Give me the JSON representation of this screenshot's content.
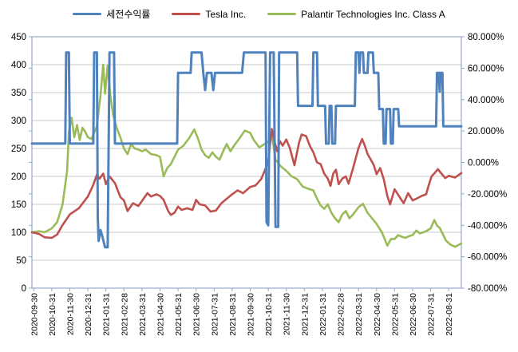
{
  "legend": {
    "items": [
      {
        "label": "세전수익률",
        "color": "#4F81BD"
      },
      {
        "label": "Tesla Inc.",
        "color": "#C0504D"
      },
      {
        "label": "Palantir Technologies Inc. Class A",
        "color": "#9BBB59"
      }
    ]
  },
  "colors": {
    "blue_series": "#4F81BD",
    "red_series": "#C0504D",
    "green_series": "#9BBB59",
    "gridline": "#C9C9C9",
    "plot_border": "#95A9C6",
    "axis_text": "#000000",
    "background": "#FFFFFF"
  },
  "chart_data": {
    "type": "line",
    "title": "",
    "grid": "horizontal",
    "legend_position": "top",
    "x_unit": "months since 2020-09-30 (t=k corresponds to k-th month-end label)",
    "x_axis": {
      "labels": [
        "2020-09-30",
        "2020-10-31",
        "2020-11-30",
        "2020-12-31",
        "2021-01-31",
        "2021-02-28",
        "2021-03-31",
        "2021-04-30",
        "2021-05-31",
        "2021-06-30",
        "2021-07-31",
        "2021-08-31",
        "2021-09-30",
        "2021-10-31",
        "2021-11-30",
        "2021-12-31",
        "2022-01-31",
        "2022-02-28",
        "2022-03-31",
        "2022-04-30",
        "2022-05-31",
        "2022-06-30",
        "2022-07-31",
        "2022-08-31"
      ],
      "label_rotation_deg": -90,
      "t_max": 23.7
    },
    "y_left": {
      "min": 0,
      "max": 450,
      "step": 50,
      "tick_labels": [
        "450",
        "400",
        "350",
        "300",
        "250",
        "200",
        "150",
        "100",
        "50",
        "0"
      ],
      "applies_to": "Tesla Inc. / Palantir indexed price (2020-09-30 = 100)"
    },
    "y_right": {
      "min": -80,
      "max": 80,
      "step": 20,
      "tick_labels": [
        "80.000%",
        "60.000%",
        "40.000%",
        "20.000%",
        "0.000%",
        "-20.000%",
        "-40.000%",
        "-60.000%",
        "-80.000%"
      ],
      "applies_to": "세전수익률 (pre-tax return %)"
    },
    "series": [
      {
        "name": "세전수익률",
        "color": "#4F81BD",
        "axis": "right",
        "unit": "percent",
        "width": 3,
        "points": [
          [
            -0.1,
            12
          ],
          [
            1.75,
            12
          ],
          [
            1.8,
            70
          ],
          [
            1.95,
            70
          ],
          [
            2.0,
            12
          ],
          [
            3.3,
            12
          ],
          [
            3.35,
            70
          ],
          [
            3.5,
            70
          ],
          [
            3.55,
            -35
          ],
          [
            3.6,
            -50
          ],
          [
            3.7,
            -43
          ],
          [
            3.8,
            -47
          ],
          [
            3.95,
            -54
          ],
          [
            4.1,
            -54
          ],
          [
            4.2,
            70
          ],
          [
            4.45,
            70
          ],
          [
            4.5,
            12
          ],
          [
            7.95,
            12
          ],
          [
            8.0,
            57
          ],
          [
            8.7,
            57
          ],
          [
            8.75,
            70
          ],
          [
            9.3,
            70
          ],
          [
            9.4,
            57
          ],
          [
            9.5,
            46
          ],
          [
            9.6,
            57
          ],
          [
            9.85,
            57
          ],
          [
            9.95,
            46
          ],
          [
            10.05,
            57
          ],
          [
            11.55,
            57
          ],
          [
            11.65,
            70
          ],
          [
            12.85,
            70
          ],
          [
            12.9,
            -38
          ],
          [
            13.0,
            -40
          ],
          [
            13.1,
            70
          ],
          [
            13.3,
            70
          ],
          [
            13.4,
            -41
          ],
          [
            13.55,
            -41
          ],
          [
            13.6,
            70
          ],
          [
            14.6,
            70
          ],
          [
            14.65,
            36
          ],
          [
            15.45,
            36
          ],
          [
            15.5,
            70
          ],
          [
            15.7,
            70
          ],
          [
            15.75,
            36
          ],
          [
            16.15,
            36
          ],
          [
            16.2,
            12
          ],
          [
            16.35,
            12
          ],
          [
            16.4,
            36
          ],
          [
            16.5,
            36
          ],
          [
            16.55,
            12
          ],
          [
            16.7,
            12
          ],
          [
            16.75,
            36
          ],
          [
            17.8,
            36
          ],
          [
            17.85,
            70
          ],
          [
            18.0,
            70
          ],
          [
            18.05,
            57
          ],
          [
            18.1,
            70
          ],
          [
            18.25,
            70
          ],
          [
            18.3,
            57
          ],
          [
            18.5,
            57
          ],
          [
            18.55,
            70
          ],
          [
            18.8,
            70
          ],
          [
            18.85,
            57
          ],
          [
            19.1,
            57
          ],
          [
            19.15,
            34
          ],
          [
            19.35,
            34
          ],
          [
            19.4,
            12
          ],
          [
            19.5,
            12
          ],
          [
            19.55,
            34
          ],
          [
            19.75,
            34
          ],
          [
            19.8,
            12
          ],
          [
            19.9,
            12
          ],
          [
            19.95,
            34
          ],
          [
            20.2,
            34
          ],
          [
            20.25,
            23
          ],
          [
            22.3,
            23
          ],
          [
            22.35,
            57
          ],
          [
            22.45,
            57
          ],
          [
            22.5,
            45
          ],
          [
            22.55,
            57
          ],
          [
            22.65,
            57
          ],
          [
            22.7,
            23
          ],
          [
            23.7,
            23
          ]
        ]
      },
      {
        "name": "Tesla Inc.",
        "color": "#C0504D",
        "axis": "left",
        "unit": "index",
        "width": 2.6,
        "points": [
          [
            -0.1,
            100
          ],
          [
            0.3,
            97
          ],
          [
            0.6,
            91
          ],
          [
            1,
            90
          ],
          [
            1.3,
            96
          ],
          [
            1.6,
            113
          ],
          [
            2,
            132
          ],
          [
            2.5,
            143
          ],
          [
            3,
            164
          ],
          [
            3.3,
            185
          ],
          [
            3.5,
            203
          ],
          [
            3.65,
            196
          ],
          [
            3.85,
            205
          ],
          [
            4,
            186
          ],
          [
            4.2,
            200
          ],
          [
            4.5,
            188
          ],
          [
            4.8,
            163
          ],
          [
            5,
            157
          ],
          [
            5.2,
            138
          ],
          [
            5.5,
            152
          ],
          [
            5.8,
            147
          ],
          [
            6,
            156
          ],
          [
            6.3,
            170
          ],
          [
            6.5,
            164
          ],
          [
            6.8,
            168
          ],
          [
            7,
            165
          ],
          [
            7.2,
            158
          ],
          [
            7.45,
            138
          ],
          [
            7.6,
            131
          ],
          [
            7.8,
            135
          ],
          [
            8,
            146
          ],
          [
            8.2,
            140
          ],
          [
            8.5,
            143
          ],
          [
            8.8,
            140
          ],
          [
            9,
            158
          ],
          [
            9.2,
            150
          ],
          [
            9.5,
            148
          ],
          [
            9.8,
            137
          ],
          [
            10.1,
            139
          ],
          [
            10.4,
            152
          ],
          [
            10.7,
            160
          ],
          [
            11,
            168
          ],
          [
            11.3,
            175
          ],
          [
            11.6,
            170
          ],
          [
            12,
            181
          ],
          [
            12.3,
            184
          ],
          [
            12.6,
            195
          ],
          [
            12.8,
            210
          ],
          [
            13,
            226
          ],
          [
            13.1,
            258
          ],
          [
            13.2,
            285
          ],
          [
            13.35,
            262
          ],
          [
            13.5,
            245
          ],
          [
            13.65,
            263
          ],
          [
            13.8,
            255
          ],
          [
            14,
            266
          ],
          [
            14.2,
            250
          ],
          [
            14.45,
            220
          ],
          [
            14.7,
            260
          ],
          [
            14.85,
            275
          ],
          [
            15.1,
            272
          ],
          [
            15.3,
            255
          ],
          [
            15.5,
            243
          ],
          [
            15.7,
            225
          ],
          [
            15.9,
            222
          ],
          [
            16.1,
            205
          ],
          [
            16.3,
            196
          ],
          [
            16.45,
            183
          ],
          [
            16.6,
            205
          ],
          [
            16.75,
            212
          ],
          [
            16.9,
            186
          ],
          [
            17.1,
            196
          ],
          [
            17.3,
            200
          ],
          [
            17.45,
            187
          ],
          [
            17.7,
            215
          ],
          [
            18,
            251
          ],
          [
            18.2,
            267
          ],
          [
            18.35,
            255
          ],
          [
            18.5,
            240
          ],
          [
            18.65,
            232
          ],
          [
            18.85,
            220
          ],
          [
            19,
            204
          ],
          [
            19.2,
            215
          ],
          [
            19.4,
            195
          ],
          [
            19.6,
            165
          ],
          [
            19.75,
            150
          ],
          [
            20,
            177
          ],
          [
            20.2,
            167
          ],
          [
            20.5,
            152
          ],
          [
            20.75,
            170
          ],
          [
            21,
            157
          ],
          [
            21.2,
            160
          ],
          [
            21.5,
            165
          ],
          [
            21.75,
            168
          ],
          [
            21.9,
            185
          ],
          [
            22.05,
            200
          ],
          [
            22.25,
            207
          ],
          [
            22.4,
            213
          ],
          [
            22.6,
            205
          ],
          [
            22.8,
            197
          ],
          [
            23,
            201
          ],
          [
            23.35,
            198
          ],
          [
            23.7,
            206
          ]
        ]
      },
      {
        "name": "Palantir Technologies Inc. Class A",
        "color": "#9BBB59",
        "axis": "left",
        "unit": "index",
        "width": 2.6,
        "points": [
          [
            -0.1,
            100
          ],
          [
            0.3,
            102
          ],
          [
            0.6,
            100
          ],
          [
            1,
            107
          ],
          [
            1.3,
            118
          ],
          [
            1.6,
            150
          ],
          [
            1.85,
            210
          ],
          [
            1.95,
            280
          ],
          [
            2.1,
            305
          ],
          [
            2.25,
            270
          ],
          [
            2.4,
            292
          ],
          [
            2.55,
            265
          ],
          [
            2.7,
            287
          ],
          [
            2.85,
            280
          ],
          [
            3,
            270
          ],
          [
            3.2,
            267
          ],
          [
            3.5,
            290
          ],
          [
            3.7,
            345
          ],
          [
            3.85,
            400
          ],
          [
            3.95,
            348
          ],
          [
            4.1,
            398
          ],
          [
            4.25,
            345
          ],
          [
            4.4,
            310
          ],
          [
            4.6,
            287
          ],
          [
            4.8,
            270
          ],
          [
            5,
            250
          ],
          [
            5.2,
            240
          ],
          [
            5.4,
            258
          ],
          [
            5.6,
            250
          ],
          [
            5.8,
            248
          ],
          [
            6,
            245
          ],
          [
            6.2,
            248
          ],
          [
            6.5,
            240
          ],
          [
            6.8,
            238
          ],
          [
            7,
            235
          ],
          [
            7.2,
            200
          ],
          [
            7.4,
            215
          ],
          [
            7.6,
            222
          ],
          [
            7.8,
            235
          ],
          [
            8,
            248
          ],
          [
            8.3,
            255
          ],
          [
            8.6,
            268
          ],
          [
            8.9,
            284
          ],
          [
            9.1,
            268
          ],
          [
            9.3,
            248
          ],
          [
            9.5,
            238
          ],
          [
            9.7,
            233
          ],
          [
            9.9,
            243
          ],
          [
            10.1,
            235
          ],
          [
            10.3,
            230
          ],
          [
            10.5,
            245
          ],
          [
            10.7,
            258
          ],
          [
            10.9,
            245
          ],
          [
            11.1,
            255
          ],
          [
            11.4,
            268
          ],
          [
            11.7,
            282
          ],
          [
            12,
            278
          ],
          [
            12.2,
            265
          ],
          [
            12.5,
            252
          ],
          [
            12.8,
            258
          ],
          [
            13,
            262
          ],
          [
            13.2,
            275
          ],
          [
            13.4,
            230
          ],
          [
            13.7,
            218
          ],
          [
            14,
            210
          ],
          [
            14.3,
            200
          ],
          [
            14.6,
            195
          ],
          [
            14.9,
            182
          ],
          [
            15.2,
            178
          ],
          [
            15.5,
            175
          ],
          [
            15.7,
            160
          ],
          [
            15.9,
            148
          ],
          [
            16.1,
            142
          ],
          [
            16.3,
            150
          ],
          [
            16.5,
            135
          ],
          [
            16.7,
            125
          ],
          [
            16.9,
            118
          ],
          [
            17.1,
            132
          ],
          [
            17.3,
            138
          ],
          [
            17.5,
            125
          ],
          [
            17.7,
            132
          ],
          [
            18,
            145
          ],
          [
            18.25,
            151
          ],
          [
            18.5,
            135
          ],
          [
            18.75,
            125
          ],
          [
            19,
            115
          ],
          [
            19.3,
            100
          ],
          [
            19.6,
            76
          ],
          [
            19.8,
            88
          ],
          [
            20,
            88
          ],
          [
            20.2,
            95
          ],
          [
            20.4,
            92
          ],
          [
            20.6,
            90
          ],
          [
            20.8,
            93
          ],
          [
            21,
            95
          ],
          [
            21.2,
            103
          ],
          [
            21.4,
            98
          ],
          [
            21.6,
            100
          ],
          [
            21.8,
            103
          ],
          [
            22,
            107
          ],
          [
            22.2,
            122
          ],
          [
            22.35,
            112
          ],
          [
            22.5,
            108
          ],
          [
            22.7,
            95
          ],
          [
            22.85,
            85
          ],
          [
            23.1,
            78
          ],
          [
            23.35,
            74
          ],
          [
            23.7,
            80
          ]
        ]
      }
    ]
  }
}
